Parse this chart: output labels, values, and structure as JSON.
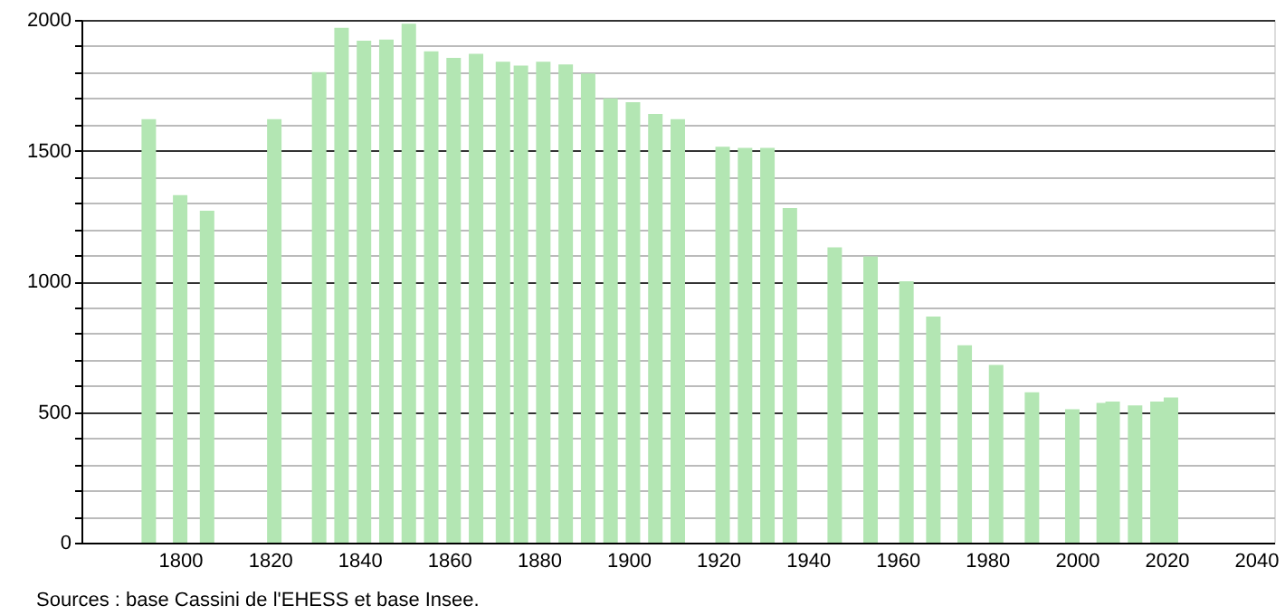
{
  "chart_data": {
    "type": "bar",
    "x": [
      1793,
      1800,
      1806,
      1821,
      1831,
      1836,
      1841,
      1846,
      1851,
      1856,
      1861,
      1866,
      1872,
      1876,
      1881,
      1886,
      1891,
      1896,
      1901,
      1906,
      1911,
      1921,
      1926,
      1931,
      1936,
      1946,
      1954,
      1962,
      1968,
      1975,
      1982,
      1990,
      1999,
      2006,
      2008,
      2013,
      2018,
      2021
    ],
    "series": [
      {
        "color": "#b3e6b3",
        "values": [
          1620,
          1330,
          1270,
          1620,
          1800,
          1970,
          1920,
          1925,
          1985,
          1880,
          1855,
          1870,
          1840,
          1825,
          1840,
          1830,
          1795,
          1700,
          1685,
          1640,
          1620,
          1515,
          1510,
          1510,
          1280,
          1130,
          1095,
          1000,
          865,
          755,
          680,
          575,
          510,
          535,
          540,
          525,
          540,
          555
        ]
      }
    ],
    "xlim": [
      1780,
      2042
    ],
    "xticks": [
      1800,
      1820,
      1840,
      1860,
      1880,
      1900,
      1920,
      1940,
      1960,
      1980,
      2000,
      2020,
      2040
    ],
    "ylim": [
      0,
      2000
    ],
    "yticks": [
      0,
      {
        "value": 100,
        "label": null
      },
      {
        "value": 200,
        "label": null
      },
      {
        "value": 300,
        "label": null
      },
      {
        "value": 400,
        "label": null
      },
      500,
      {
        "value": 600,
        "label": null
      },
      {
        "value": 700,
        "label": null
      },
      {
        "value": 800,
        "label": null
      },
      {
        "value": 900,
        "label": null
      },
      1000,
      {
        "value": 1100,
        "label": null
      },
      {
        "value": 1200,
        "label": null
      },
      {
        "value": 1300,
        "label": null
      },
      {
        "value": 1400,
        "label": null
      },
      1500,
      {
        "value": 1600,
        "label": null
      },
      {
        "value": 1700,
        "label": null
      },
      {
        "value": 1800,
        "label": null
      },
      {
        "value": 1900,
        "label": null
      },
      2000
    ],
    "grid": "y",
    "annotations": [
      "Sources : base Cassini de l'EHESS et base Insee."
    ]
  }
}
